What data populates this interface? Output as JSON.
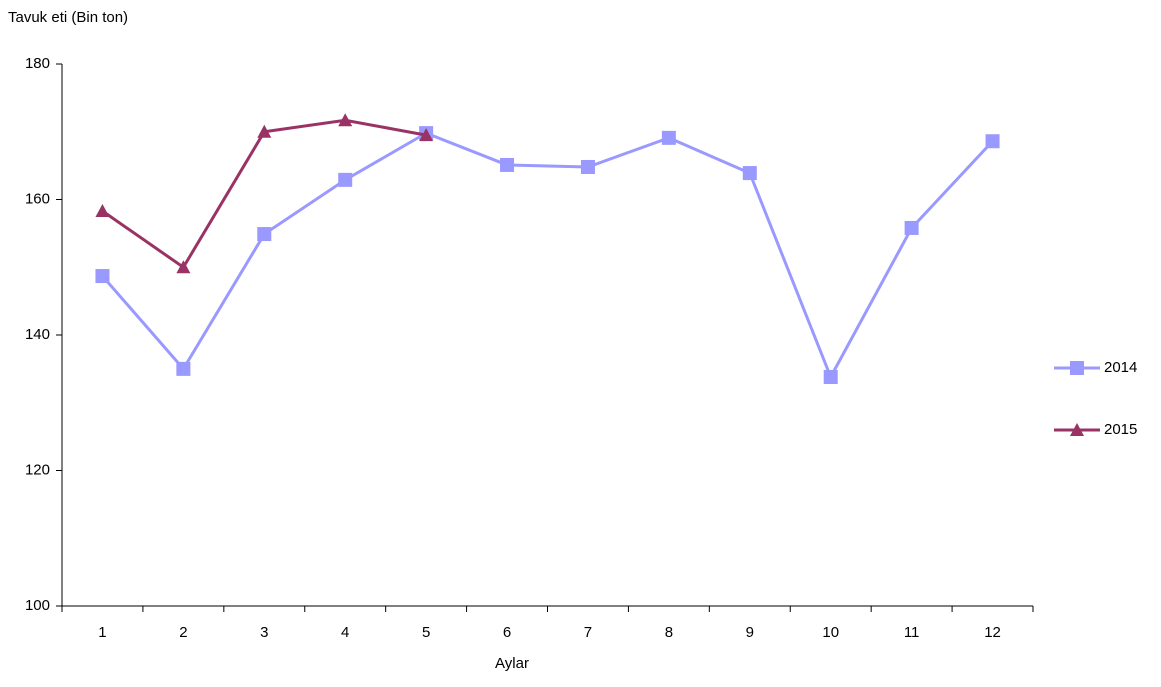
{
  "chart_data": {
    "type": "line",
    "y_axis_label": "Tavuk eti (Bin ton)",
    "x_axis_label": "Aylar",
    "categories": [
      "1",
      "2",
      "3",
      "4",
      "5",
      "6",
      "7",
      "8",
      "9",
      "10",
      "11",
      "12"
    ],
    "series": [
      {
        "name": "2014",
        "color": "#9999ff",
        "marker": "square",
        "values": [
          148.7,
          135,
          154.9,
          162.9,
          169.8,
          165.1,
          164.8,
          169.1,
          163.9,
          133.8,
          155.8,
          168.6
        ]
      },
      {
        "name": "2015",
        "color": "#993366",
        "marker": "triangle",
        "values": [
          158.3,
          150,
          170,
          171.7,
          169.5,
          null,
          null,
          null,
          null,
          null,
          null,
          null
        ]
      }
    ],
    "ylim": [
      100,
      180
    ],
    "yticks": [
      100,
      120,
      140,
      160,
      180
    ],
    "grid": false,
    "legend": "right"
  }
}
